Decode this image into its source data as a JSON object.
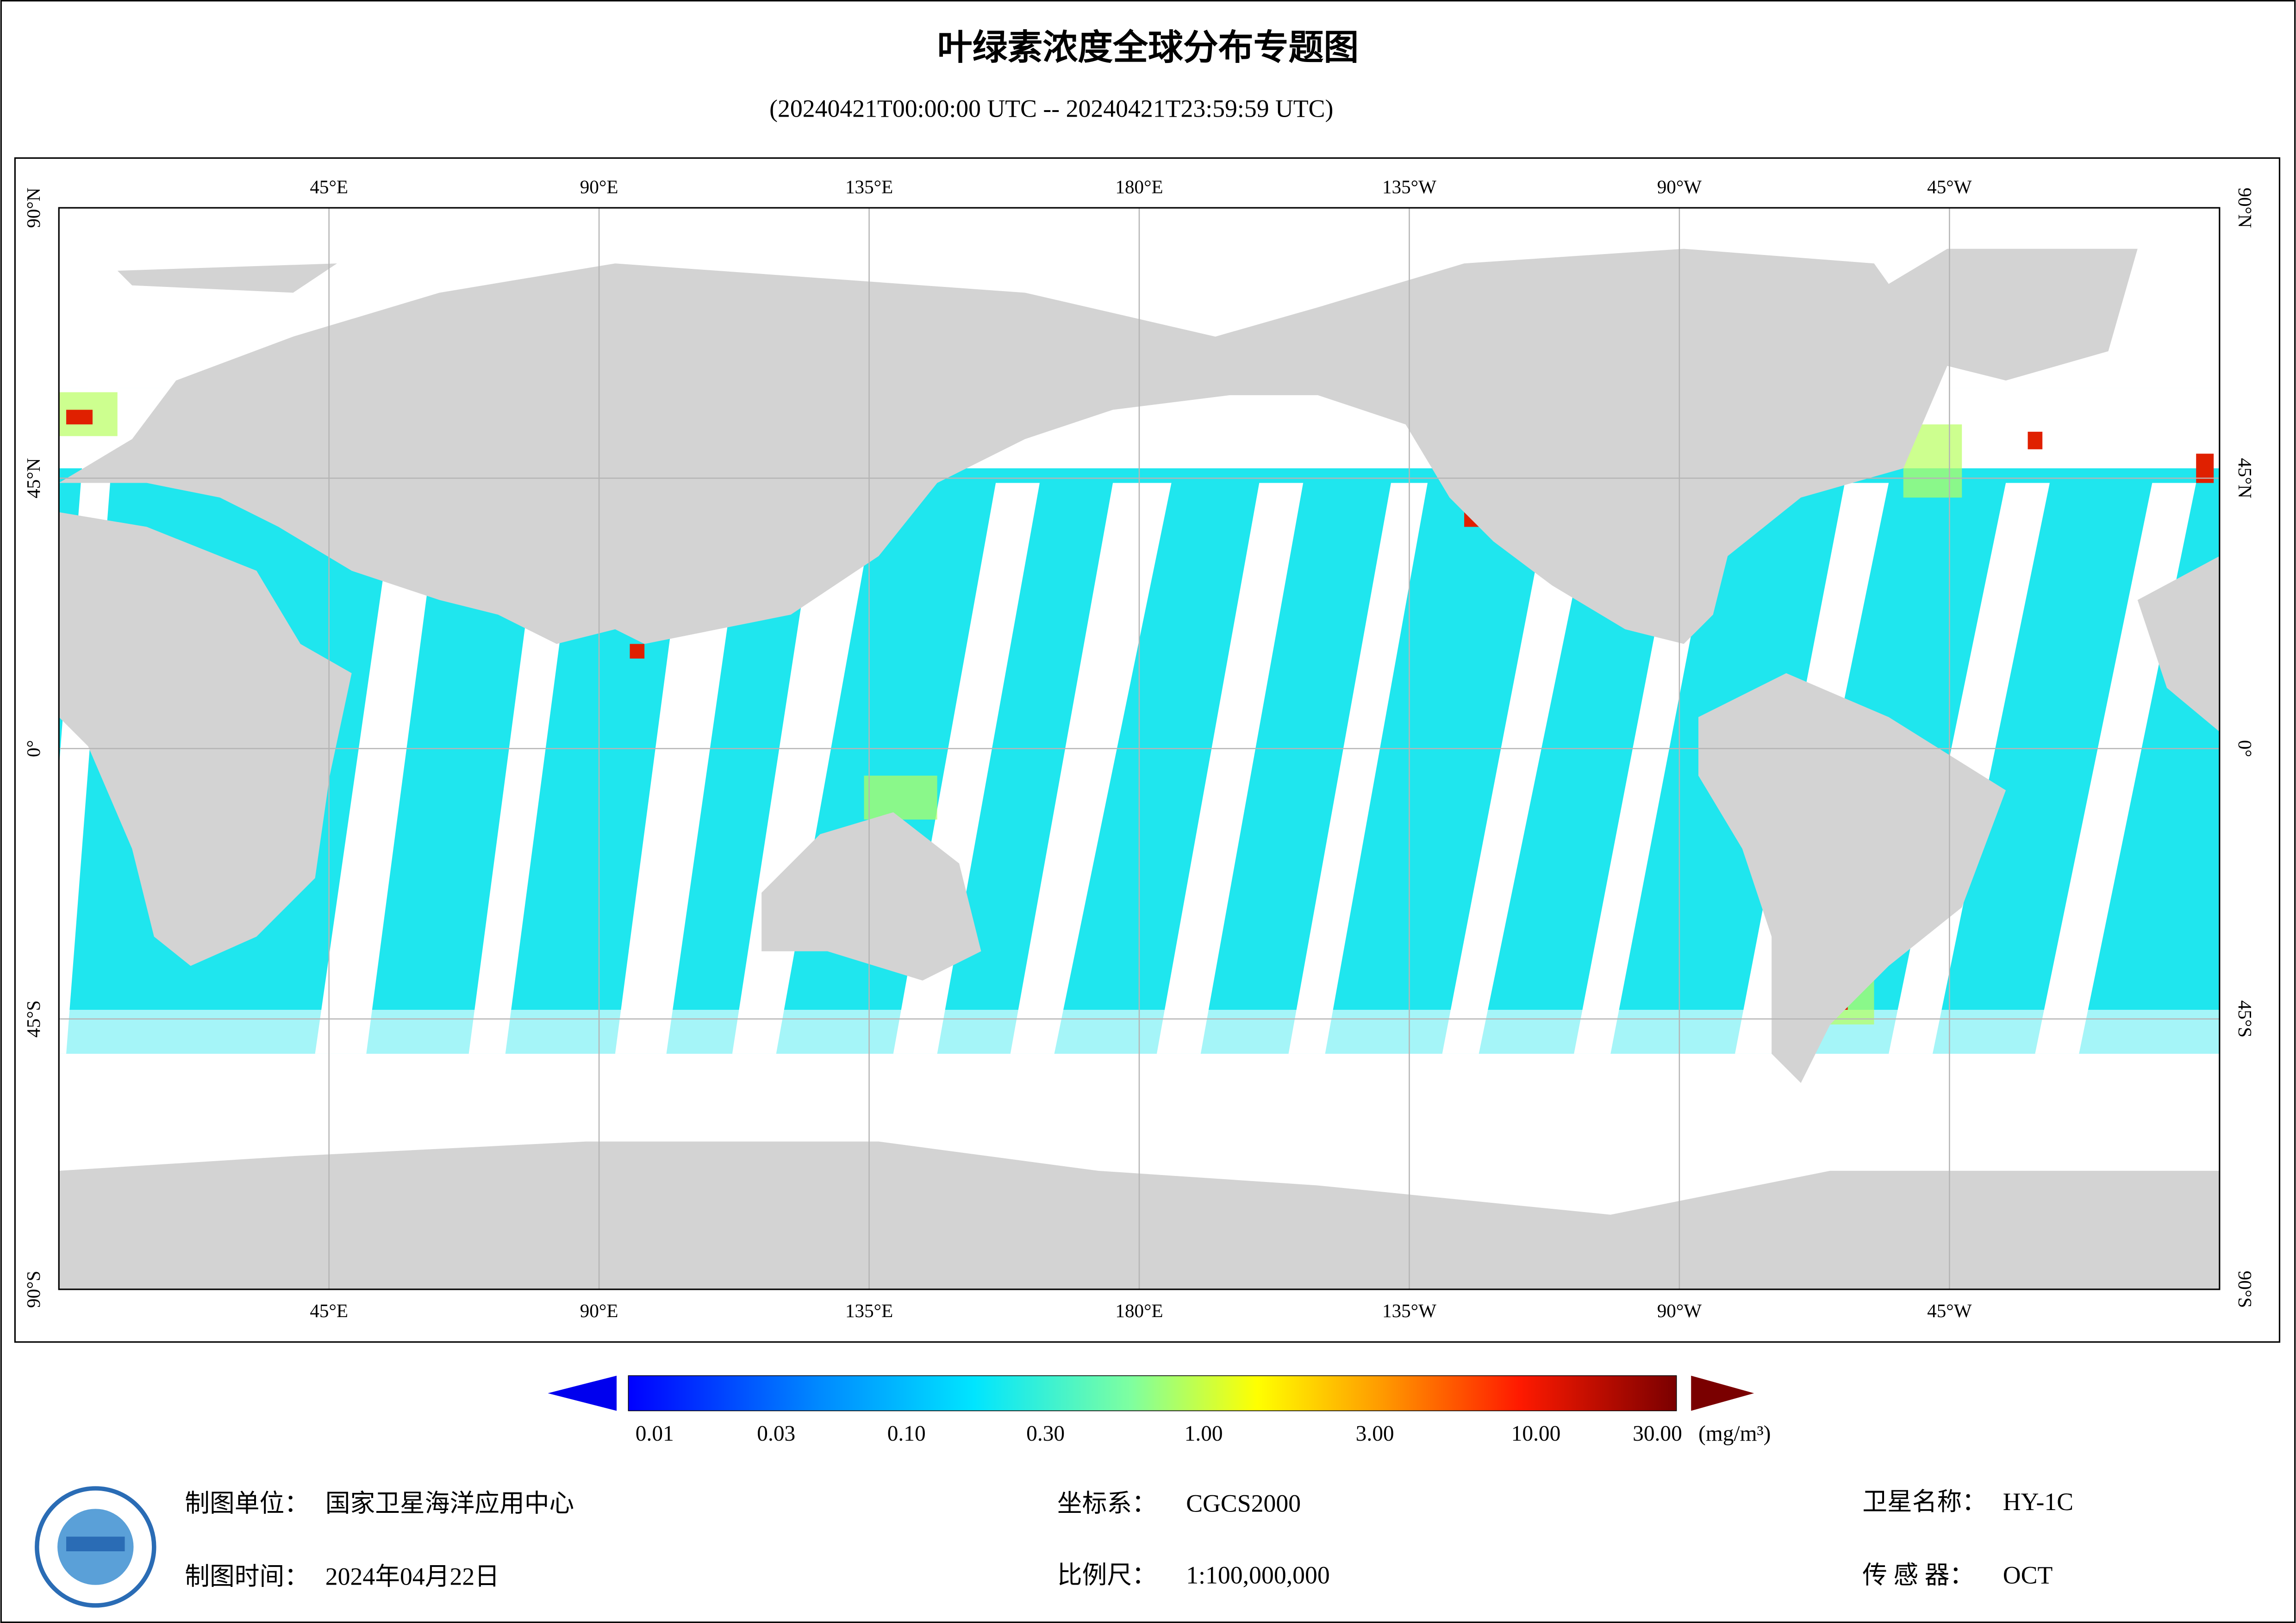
{
  "header": {
    "title": "叶绿素浓度全球分布专题图",
    "subtitle": "(20240421T00:00:00 UTC -- 20240421T23:59:59 UTC)"
  },
  "map": {
    "lon_labels": [
      "45°E",
      "90°E",
      "135°E",
      "180°E",
      "135°W",
      "90°W",
      "45°W"
    ],
    "lat_labels": [
      "90°N",
      "45°N",
      "0°",
      "45°S",
      "90°S"
    ]
  },
  "colorbar": {
    "labels": [
      "0.01",
      "0.03",
      "0.10",
      "0.30",
      "1.00",
      "3.00",
      "10.00",
      "30.00"
    ],
    "unit": "(mg/m³)"
  },
  "footer": {
    "unit_label": "制图单位：",
    "unit": "国家卫星海洋应用中心",
    "date_label": "制图时间：",
    "date": "2024年04月22日",
    "crs_label": "坐标系：",
    "crs": "CGCS2000",
    "scale_label": "比例尺：",
    "scale": "1:100,000,000",
    "satellite_label": "卫星名称：",
    "satellite": "HY-1C",
    "sensor_label": "传 感 器：",
    "sensor": "OCT"
  }
}
